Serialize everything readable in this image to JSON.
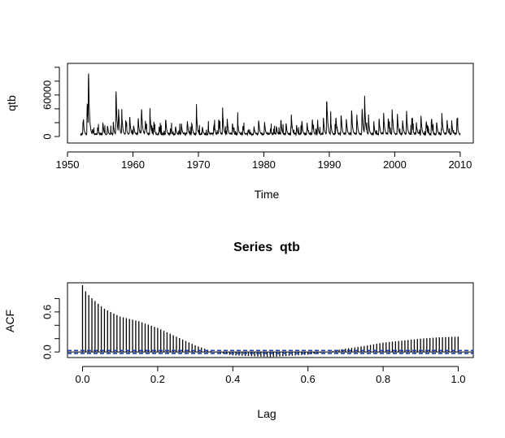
{
  "chart_data": [
    {
      "type": "line",
      "title": "",
      "xlabel": "Time",
      "ylabel": "qtb",
      "xlim": [
        1950,
        2012
      ],
      "ylim": [
        0,
        115000
      ],
      "x_ticks": [
        1950,
        1960,
        1970,
        1980,
        1990,
        2000,
        2010
      ],
      "y_ticks": [
        0,
        60000
      ],
      "y_minor_ticks": [
        20000,
        40000,
        80000,
        100000
      ],
      "y_tick_labels": [
        "0",
        "60000"
      ],
      "series": [
        {
          "color": "#000000",
          "x_start": 1952.0,
          "x_end": 2010.0,
          "baseline": 2000,
          "peaks": [
            {
              "x": 1952.4,
              "y": 28000
            },
            {
              "x": 1953.0,
              "y": 58000
            },
            {
              "x": 1953.2,
              "y": 113000
            },
            {
              "x": 1953.8,
              "y": 12000
            },
            {
              "x": 1954.6,
              "y": 15000
            },
            {
              "x": 1955.4,
              "y": 24000
            },
            {
              "x": 1956.1,
              "y": 18000
            },
            {
              "x": 1957.0,
              "y": 22000
            },
            {
              "x": 1957.4,
              "y": 80000
            },
            {
              "x": 1957.8,
              "y": 48000
            },
            {
              "x": 1958.3,
              "y": 36000
            },
            {
              "x": 1958.9,
              "y": 28000
            },
            {
              "x": 1959.5,
              "y": 34000
            },
            {
              "x": 1960.1,
              "y": 20000
            },
            {
              "x": 1960.8,
              "y": 30000
            },
            {
              "x": 1961.3,
              "y": 49000
            },
            {
              "x": 1961.9,
              "y": 25000
            },
            {
              "x": 1962.6,
              "y": 40000
            },
            {
              "x": 1963.2,
              "y": 22000
            },
            {
              "x": 1964.0,
              "y": 16000
            },
            {
              "x": 1965.0,
              "y": 30000
            },
            {
              "x": 1965.8,
              "y": 12000
            },
            {
              "x": 1966.5,
              "y": 17000
            },
            {
              "x": 1967.4,
              "y": 20000
            },
            {
              "x": 1968.3,
              "y": 27000
            },
            {
              "x": 1969.0,
              "y": 22000
            },
            {
              "x": 1969.7,
              "y": 40000
            },
            {
              "x": 1970.6,
              "y": 16000
            },
            {
              "x": 1971.5,
              "y": 14000
            },
            {
              "x": 1972.4,
              "y": 19000
            },
            {
              "x": 1973.1,
              "y": 29000
            },
            {
              "x": 1973.7,
              "y": 43000
            },
            {
              "x": 1974.4,
              "y": 27000
            },
            {
              "x": 1975.2,
              "y": 22000
            },
            {
              "x": 1976.0,
              "y": 25000
            },
            {
              "x": 1976.8,
              "y": 19000
            },
            {
              "x": 1977.6,
              "y": 12000
            },
            {
              "x": 1978.5,
              "y": 16000
            },
            {
              "x": 1979.2,
              "y": 28000
            },
            {
              "x": 1980.1,
              "y": 24000
            },
            {
              "x": 1981.0,
              "y": 13000
            },
            {
              "x": 1981.9,
              "y": 18000
            },
            {
              "x": 1982.6,
              "y": 29000
            },
            {
              "x": 1983.4,
              "y": 21000
            },
            {
              "x": 1984.2,
              "y": 35000
            },
            {
              "x": 1985.0,
              "y": 19000
            },
            {
              "x": 1985.8,
              "y": 26000
            },
            {
              "x": 1986.6,
              "y": 22000
            },
            {
              "x": 1987.4,
              "y": 30000
            },
            {
              "x": 1988.2,
              "y": 24000
            },
            {
              "x": 1989.1,
              "y": 31000
            },
            {
              "x": 1989.6,
              "y": 69000
            },
            {
              "x": 1990.2,
              "y": 29000
            },
            {
              "x": 1991.0,
              "y": 33000
            },
            {
              "x": 1991.8,
              "y": 37000
            },
            {
              "x": 1992.6,
              "y": 29000
            },
            {
              "x": 1993.4,
              "y": 45000
            },
            {
              "x": 1994.2,
              "y": 37000
            },
            {
              "x": 1995.0,
              "y": 48000
            },
            {
              "x": 1995.4,
              "y": 60000
            },
            {
              "x": 1996.0,
              "y": 27000
            },
            {
              "x": 1996.8,
              "y": 22000
            },
            {
              "x": 1997.6,
              "y": 29000
            },
            {
              "x": 1998.3,
              "y": 38000
            },
            {
              "x": 1999.0,
              "y": 31000
            },
            {
              "x": 1999.6,
              "y": 44000
            },
            {
              "x": 2000.4,
              "y": 36000
            },
            {
              "x": 2001.2,
              "y": 28000
            },
            {
              "x": 2001.8,
              "y": 40000
            },
            {
              "x": 2002.6,
              "y": 32000
            },
            {
              "x": 2003.3,
              "y": 22000
            },
            {
              "x": 2004.0,
              "y": 34000
            },
            {
              "x": 2004.8,
              "y": 27000
            },
            {
              "x": 2005.6,
              "y": 30000
            },
            {
              "x": 2006.4,
              "y": 25000
            },
            {
              "x": 2007.2,
              "y": 38000
            },
            {
              "x": 2008.0,
              "y": 27000
            },
            {
              "x": 2008.7,
              "y": 24000
            },
            {
              "x": 2009.5,
              "y": 29000
            }
          ]
        }
      ]
    },
    {
      "type": "bar",
      "title": "Series  qtb",
      "xlabel": "Lag",
      "ylabel": "ACF",
      "xlim": [
        -0.04,
        1.04
      ],
      "ylim": [
        -0.12,
        1.0
      ],
      "x_ticks": [
        0.0,
        0.2,
        0.4,
        0.6,
        0.8,
        1.0
      ],
      "x_tick_labels": [
        "0.0",
        "0.2",
        "0.4",
        "0.6",
        "0.8",
        "1.0"
      ],
      "y_ticks": [
        0.0,
        0.6
      ],
      "y_minor_ticks": [
        0.2,
        0.4,
        0.8
      ],
      "y_tick_labels": [
        "0.0",
        "0.6"
      ],
      "confidence_band": 0.022,
      "confidence_color": "#1f3fbf",
      "lag_step": 0.00833,
      "acf_profile": [
        [
          0.0,
          1.0
        ],
        [
          0.005,
          0.93
        ],
        [
          0.02,
          0.83
        ],
        [
          0.04,
          0.73
        ],
        [
          0.06,
          0.64
        ],
        [
          0.1,
          0.53
        ],
        [
          0.15,
          0.46
        ],
        [
          0.2,
          0.36
        ],
        [
          0.25,
          0.23
        ],
        [
          0.3,
          0.1
        ],
        [
          0.35,
          0.0
        ],
        [
          0.4,
          -0.05
        ],
        [
          0.5,
          -0.075
        ],
        [
          0.6,
          -0.04
        ],
        [
          0.65,
          0.0
        ],
        [
          0.7,
          0.05
        ],
        [
          0.75,
          0.09
        ],
        [
          0.8,
          0.14
        ],
        [
          0.85,
          0.17
        ],
        [
          0.9,
          0.2
        ],
        [
          0.95,
          0.22
        ],
        [
          1.0,
          0.23
        ]
      ]
    }
  ]
}
